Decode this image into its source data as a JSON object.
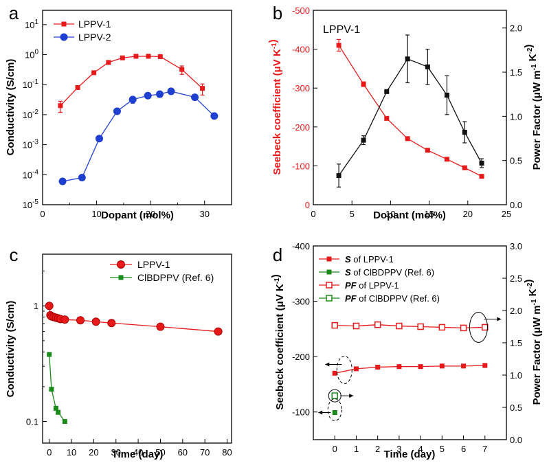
{
  "colors": {
    "red": "#e8191a",
    "blue": "#1f3fd1",
    "green": "#1a8a1a",
    "black": "#111111"
  },
  "chart_data": [
    {
      "panel": "a",
      "type": "line",
      "xlabel": "Dopant  (mol%)",
      "ylabel": "Conductivity (S/cm)",
      "xlim": [
        0,
        35
      ],
      "ylim": [
        1e-05,
        30
      ],
      "yscale": "log",
      "x_ticks": [
        "0",
        "10",
        "20",
        "30"
      ],
      "y_ticks": [
        "10-5",
        "10-4",
        "10-3",
        "10-2",
        "10-1",
        "100",
        "101"
      ],
      "legend_position": "top-left",
      "series": [
        {
          "name": "LPPV-1",
          "color": "red",
          "marker": "square",
          "x": [
            3.3,
            6.5,
            9.5,
            12.2,
            14.8,
            17.3,
            19.6,
            21.8,
            25.8,
            29.6
          ],
          "y": [
            0.02,
            0.08,
            0.25,
            0.55,
            0.78,
            0.88,
            0.88,
            0.86,
            0.32,
            0.075
          ],
          "err": [
            0.008,
            0.01,
            0.03,
            0.05,
            0.06,
            0.06,
            0.05,
            0.04,
            0.1,
            0.03
          ]
        },
        {
          "name": "LPPV-2",
          "color": "blue",
          "marker": "circle",
          "x": [
            3.7,
            7.3,
            10.5,
            13.8,
            16.7,
            19.5,
            21.7,
            23.8,
            28.2,
            31.8
          ],
          "y": [
            6e-05,
            8e-05,
            0.0016,
            0.013,
            0.032,
            0.043,
            0.048,
            0.06,
            0.038,
            0.009
          ],
          "err": [
            0,
            0,
            0,
            0.002,
            0.008,
            0.005,
            0.01,
            0.01,
            0.004,
            0
          ]
        }
      ]
    },
    {
      "panel": "b",
      "type": "line",
      "xlabel": "Dopant  (mol%)",
      "ylabel_left": "Seebeck coefficient (μV K-1)",
      "ylabel_right": "Power Factor (μW m-1 K-2)",
      "annotation": "LPPV-1",
      "xlim": [
        0,
        25
      ],
      "ylim_left": [
        0,
        -500
      ],
      "ylim_right": [
        0,
        2.2
      ],
      "x_ticks": [
        "0",
        "5",
        "10",
        "15",
        "20",
        "25"
      ],
      "y_ticks_left": [
        "0",
        "-100",
        "-200",
        "-300",
        "-400",
        "-500"
      ],
      "y_ticks_right": [
        "0.0",
        "0.5",
        "1.0",
        "1.5",
        "2.0"
      ],
      "series": [
        {
          "name": "Seebeck coefficient",
          "color": "red",
          "axis": "left",
          "marker": "square",
          "x": [
            3.3,
            6.5,
            9.5,
            12.2,
            14.8,
            17.3,
            19.6,
            21.8
          ],
          "y": [
            -410,
            -310,
            -222,
            -170,
            -140,
            -117,
            -95,
            -73
          ],
          "err": [
            15,
            6,
            3,
            0,
            0,
            0,
            0,
            0
          ]
        },
        {
          "name": "Power Factor",
          "color": "black",
          "axis": "right",
          "marker": "square",
          "x": [
            3.3,
            6.5,
            9.5,
            12.2,
            14.8,
            17.3,
            19.6,
            21.8
          ],
          "y": [
            0.33,
            0.73,
            1.28,
            1.65,
            1.56,
            1.24,
            0.82,
            0.47
          ],
          "err": [
            0.13,
            0.05,
            0.02,
            0.27,
            0.2,
            0.22,
            0.12,
            0.05
          ]
        }
      ]
    },
    {
      "panel": "c",
      "type": "line",
      "xlabel": "Time (day)",
      "ylabel": "Conductivity (S/cm)",
      "xlim": [
        -3,
        82
      ],
      "ylim": [
        0.065,
        2.8
      ],
      "yscale": "log",
      "x_ticks": [
        "0",
        "10",
        "20",
        "30",
        "40",
        "50",
        "60",
        "70",
        "80"
      ],
      "y_ticks": [
        "0.1",
        "1"
      ],
      "legend_position": "top-right",
      "series": [
        {
          "name": "LPPV-1",
          "color": "red",
          "marker": "circle",
          "x": [
            0,
            0.5,
            1,
            2,
            3,
            4,
            5,
            7,
            14,
            21,
            28,
            50,
            76
          ],
          "y": [
            1.0,
            0.83,
            0.81,
            0.8,
            0.79,
            0.78,
            0.77,
            0.76,
            0.75,
            0.73,
            0.71,
            0.66,
            0.6
          ]
        },
        {
          "name": "ClBDPPV (Ref. 6)",
          "color": "green",
          "marker": "square",
          "x": [
            0,
            1,
            3,
            4,
            7
          ],
          "y": [
            0.38,
            0.19,
            0.13,
            0.12,
            0.1
          ]
        }
      ]
    },
    {
      "panel": "d",
      "type": "line",
      "xlabel": "Time  (day)",
      "ylabel_left": "Seebeck coefficient (μV K-1)",
      "ylabel_right": "Power Factor (μW m-1 K-2)",
      "xlim": [
        -1,
        8
      ],
      "ylim_left": [
        -50,
        -400
      ],
      "ylim_right": [
        0,
        3.0
      ],
      "x_ticks": [
        "0",
        "1",
        "2",
        "3",
        "4",
        "5",
        "6",
        "7"
      ],
      "y_ticks_left": [
        "-100",
        "-200",
        "-300",
        "-400"
      ],
      "y_ticks_right": [
        "0.0",
        "0.5",
        "1.0",
        "1.5",
        "2.0",
        "2.5",
        "3.0"
      ],
      "legend": [
        {
          "sym": "S",
          "rest": " of LPPV-1",
          "color": "red",
          "marker": "square"
        },
        {
          "sym": "S",
          "rest": " of ClBDPPV (Ref. 6)",
          "color": "green",
          "marker": "square"
        },
        {
          "sym": "PF",
          "rest": " of LPPV-1",
          "color": "red",
          "marker": "open-square"
        },
        {
          "sym": "PF",
          "rest": " of ClBDPPV (Ref. 6)",
          "color": "green",
          "marker": "open-square"
        }
      ],
      "series": [
        {
          "name": "S of LPPV-1",
          "color": "red",
          "axis": "left",
          "marker": "square",
          "x": [
            0,
            1,
            2,
            3,
            4,
            5,
            6,
            7
          ],
          "y": [
            -170,
            -178,
            -181,
            -182,
            -182,
            -183,
            -183,
            -184
          ]
        },
        {
          "name": "S of ClBDPPV (Ref. 6)",
          "color": "green",
          "axis": "left",
          "marker": "square",
          "x": [
            0
          ],
          "y": [
            -99
          ]
        },
        {
          "name": "PF of LPPV-1",
          "color": "red",
          "axis": "right",
          "marker": "open-square",
          "x": [
            0,
            1,
            2,
            3,
            4,
            5,
            6,
            7
          ],
          "y": [
            1.77,
            1.76,
            1.78,
            1.76,
            1.75,
            1.74,
            1.73,
            1.74
          ]
        },
        {
          "name": "PF of ClBDPPV (Ref. 6)",
          "color": "green",
          "axis": "right",
          "marker": "open-square",
          "x": [
            0
          ],
          "y": [
            0.68
          ]
        }
      ]
    }
  ]
}
